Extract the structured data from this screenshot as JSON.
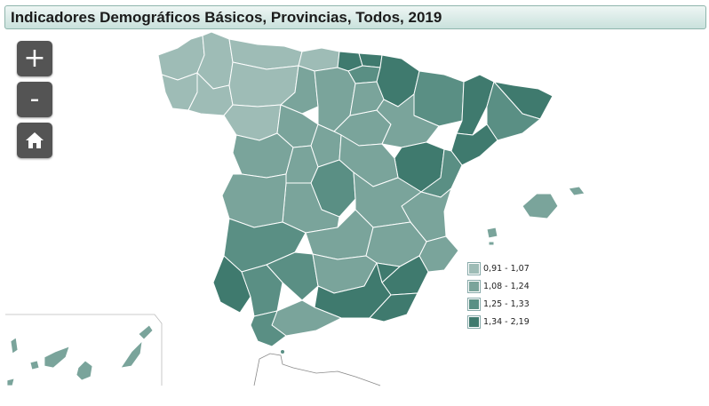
{
  "title": "Indicadores Demográficos Básicos, Provincias, Todos, 2019",
  "controls": {
    "zoom_in": "+",
    "zoom_out": "-",
    "home": "home-icon"
  },
  "legend": [
    {
      "label": "0,91 - 1,07",
      "color": "#9ebcb6"
    },
    {
      "label": "1,08 - 1,24",
      "color": "#7aa49b"
    },
    {
      "label": "1,25 - 1,33",
      "color": "#5a8f84"
    },
    {
      "label": "1,34 - 2,19",
      "color": "#3f7a6e"
    }
  ]
}
